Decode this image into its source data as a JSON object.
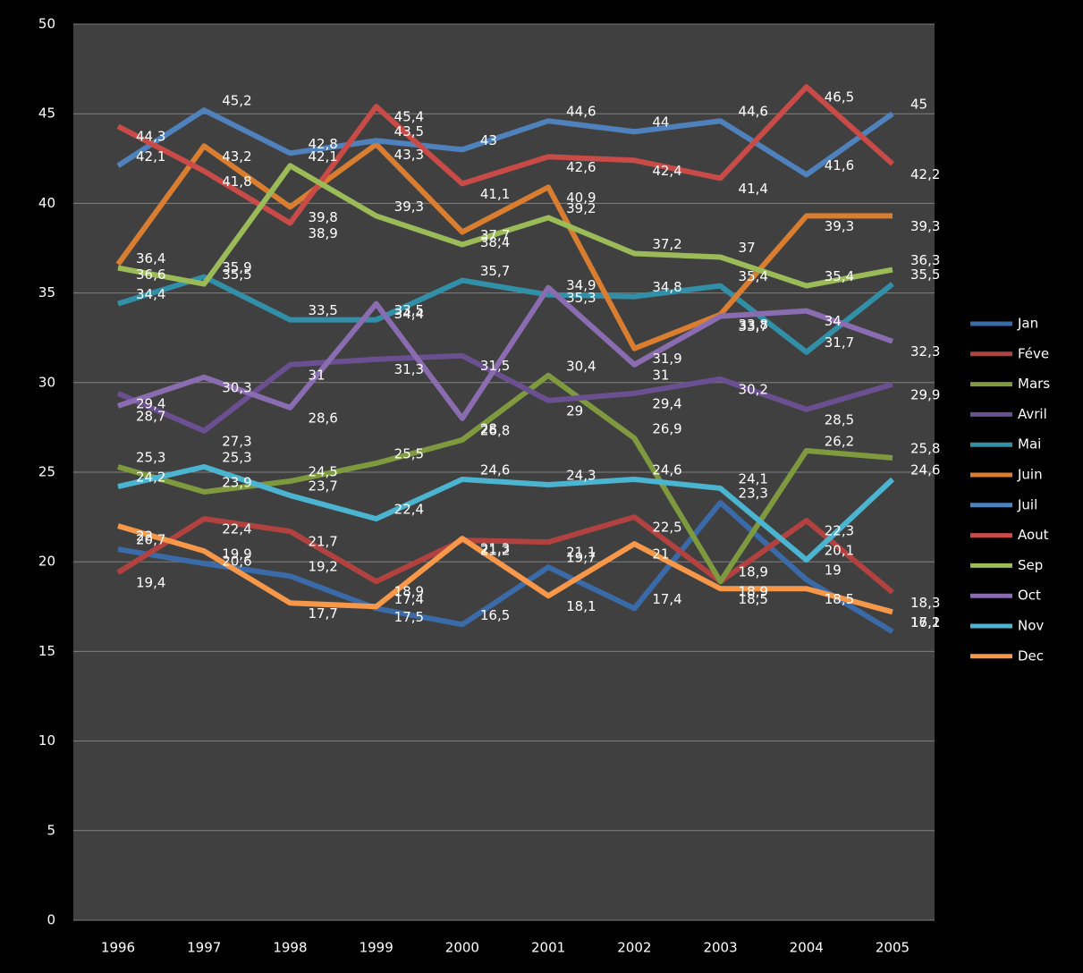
{
  "chart_data": {
    "type": "line",
    "categories": [
      "1996",
      "1997",
      "1998",
      "1999",
      "2000",
      "2001",
      "2002",
      "2003",
      "2004",
      "2005"
    ],
    "ylim": [
      0,
      50
    ],
    "yticks": [
      0,
      5,
      10,
      15,
      20,
      25,
      30,
      35,
      40,
      45,
      50
    ],
    "grid": true,
    "legend": "right",
    "series": [
      {
        "name": "Jan",
        "color": "#3a6aa8",
        "values": [
          20.7,
          19.9,
          19.2,
          17.4,
          16.5,
          19.7,
          17.4,
          23.3,
          19,
          16.1
        ],
        "value_labels": [
          "20,7",
          "19,9",
          "19,2",
          "17,4",
          "16,5",
          "19,7",
          "17,4",
          "23,3",
          "19",
          "16,1"
        ]
      },
      {
        "name": "Féve",
        "color": "#b2423f",
        "values": [
          19.4,
          22.4,
          21.7,
          18.9,
          21.2,
          21.1,
          22.5,
          18.9,
          22.3,
          18.3
        ],
        "value_labels": [
          "19,4",
          "22,4",
          "21,7",
          "18,9",
          "21,2",
          "21,1",
          "22,5",
          "18,9",
          "22,3",
          "18,3"
        ]
      },
      {
        "name": "Mars",
        "color": "#7f9a3e",
        "values": [
          25.3,
          23.9,
          24.5,
          25.5,
          26.8,
          30.4,
          26.9,
          18.9,
          26.2,
          25.8
        ],
        "value_labels": [
          "25,3",
          "23,9",
          "24,5",
          "25,5",
          "26,8",
          "30,4",
          "26,9",
          "18,9",
          "26,2",
          "25,8"
        ]
      },
      {
        "name": "Avril",
        "color": "#6a5090",
        "values": [
          29.4,
          27.3,
          31,
          31.3,
          31.5,
          29,
          29.4,
          30.2,
          28.5,
          29.9
        ],
        "value_labels": [
          "29,4",
          "27,3",
          "31",
          "31,3",
          "31,5",
          "29",
          "29,4",
          "30,2",
          "28,5",
          "29,9"
        ]
      },
      {
        "name": "Mai",
        "color": "#3190a8",
        "values": [
          34.4,
          35.9,
          33.5,
          33.5,
          35.7,
          34.9,
          34.8,
          35.4,
          31.7,
          35.5
        ],
        "value_labels": [
          "34,4",
          "35,9",
          "33,5",
          "33,5",
          "35,7",
          "34,9",
          "34,8",
          "35,4",
          "31,7",
          "35,5"
        ]
      },
      {
        "name": "Juin",
        "color": "#d97d30",
        "values": [
          36.6,
          43.2,
          39.8,
          43.3,
          38.4,
          40.9,
          31.9,
          33.8,
          39.3,
          39.3
        ],
        "value_labels": [
          "36,6",
          "43,2",
          "39,8",
          "43,3",
          "38,4",
          "40,9",
          "31,9",
          "33,8",
          "39,3",
          "39,3"
        ]
      },
      {
        "name": "Juil",
        "color": "#4f81bd",
        "values": [
          42.1,
          45.2,
          42.8,
          43.5,
          43,
          44.6,
          44,
          44.6,
          41.6,
          45
        ],
        "value_labels": [
          "42,1",
          "45,2",
          "42,8",
          "43,5",
          "43",
          "44,6",
          "44",
          "44,6",
          "41,6",
          "45"
        ]
      },
      {
        "name": "Aout",
        "color": "#c94b48",
        "values": [
          44.3,
          41.8,
          38.9,
          45.4,
          41.1,
          42.6,
          42.4,
          41.4,
          46.5,
          42.2
        ],
        "value_labels": [
          "44,3",
          "41,8",
          "38,9",
          "45,4",
          "41,1",
          "42,6",
          "42,4",
          "41,4",
          "46,5",
          "42,2"
        ]
      },
      {
        "name": "Sep",
        "color": "#9bbb59",
        "values": [
          36.4,
          35.5,
          42.1,
          39.3,
          37.7,
          39.2,
          37.2,
          37,
          35.4,
          36.3
        ],
        "value_labels": [
          "36,4",
          "35,5",
          "42,1",
          "39,3",
          "37,7",
          "39,2",
          "37,2",
          "37",
          "35,4",
          "36,3"
        ]
      },
      {
        "name": "Oct",
        "color": "#8a6cb0",
        "values": [
          28.7,
          30.3,
          28.6,
          34.4,
          28,
          35.3,
          31,
          33.7,
          34,
          32.3
        ],
        "value_labels": [
          "28,7",
          "30,3",
          "28,6",
          "34,4",
          "28",
          "35,3",
          "31",
          "33,7",
          "34",
          "32,3"
        ]
      },
      {
        "name": "Nov",
        "color": "#4bb4d0",
        "values": [
          24.2,
          25.3,
          23.7,
          22.4,
          24.6,
          24.3,
          24.6,
          24.1,
          20.1,
          24.6
        ],
        "value_labels": [
          "24,2",
          "25,3",
          "23,7",
          "22,4",
          "24,6",
          "24,3",
          "24,6",
          "24,1",
          "20,1",
          "24,6"
        ]
      },
      {
        "name": "Dec",
        "color": "#f7974a",
        "values": [
          22,
          20.6,
          17.7,
          17.5,
          21.3,
          18.1,
          21,
          18.5,
          18.5,
          17.2
        ],
        "value_labels": [
          "22",
          "20,6",
          "17,7",
          "17,5",
          "21,3",
          "18,1",
          "21",
          "18,5",
          "18,5",
          "17,2"
        ]
      }
    ]
  }
}
